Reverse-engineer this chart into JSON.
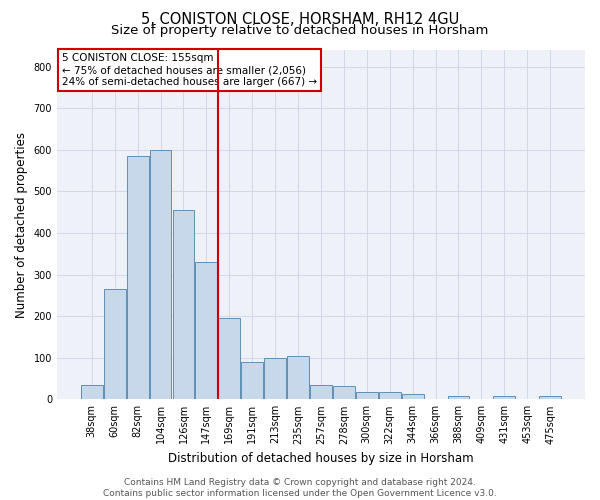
{
  "title1": "5, CONISTON CLOSE, HORSHAM, RH12 4GU",
  "title2": "Size of property relative to detached houses in Horsham",
  "xlabel": "Distribution of detached houses by size in Horsham",
  "ylabel": "Number of detached properties",
  "footer1": "Contains HM Land Registry data © Crown copyright and database right 2024.",
  "footer2": "Contains public sector information licensed under the Open Government Licence v3.0.",
  "categories": [
    "38sqm",
    "60sqm",
    "82sqm",
    "104sqm",
    "126sqm",
    "147sqm",
    "169sqm",
    "191sqm",
    "213sqm",
    "235sqm",
    "257sqm",
    "278sqm",
    "300sqm",
    "322sqm",
    "344sqm",
    "366sqm",
    "388sqm",
    "409sqm",
    "431sqm",
    "453sqm",
    "475sqm"
  ],
  "values": [
    35,
    265,
    585,
    600,
    455,
    330,
    195,
    90,
    100,
    105,
    35,
    32,
    18,
    17,
    12,
    0,
    7,
    0,
    8,
    0,
    7
  ],
  "bar_color": "#c8d8eb",
  "bar_edge_color": "#6090b8",
  "vline_x": 5.5,
  "vline_color": "#cc0000",
  "annotation_line1": "5 CONISTON CLOSE: 155sqm",
  "annotation_line2": "← 75% of detached houses are smaller (2,056)",
  "annotation_line3": "24% of semi-detached houses are larger (667) →",
  "annotation_box_color": "#ffffff",
  "annotation_box_edge": "#cc0000",
  "ylim": [
    0,
    840
  ],
  "yticks": [
    0,
    100,
    200,
    300,
    400,
    500,
    600,
    700,
    800
  ],
  "grid_color": "#d0d8ea",
  "bg_color": "#eef2f8",
  "title1_fontsize": 10.5,
  "title2_fontsize": 9.5,
  "xlabel_fontsize": 8.5,
  "ylabel_fontsize": 8.5,
  "tick_fontsize": 7,
  "footer_fontsize": 6.5
}
